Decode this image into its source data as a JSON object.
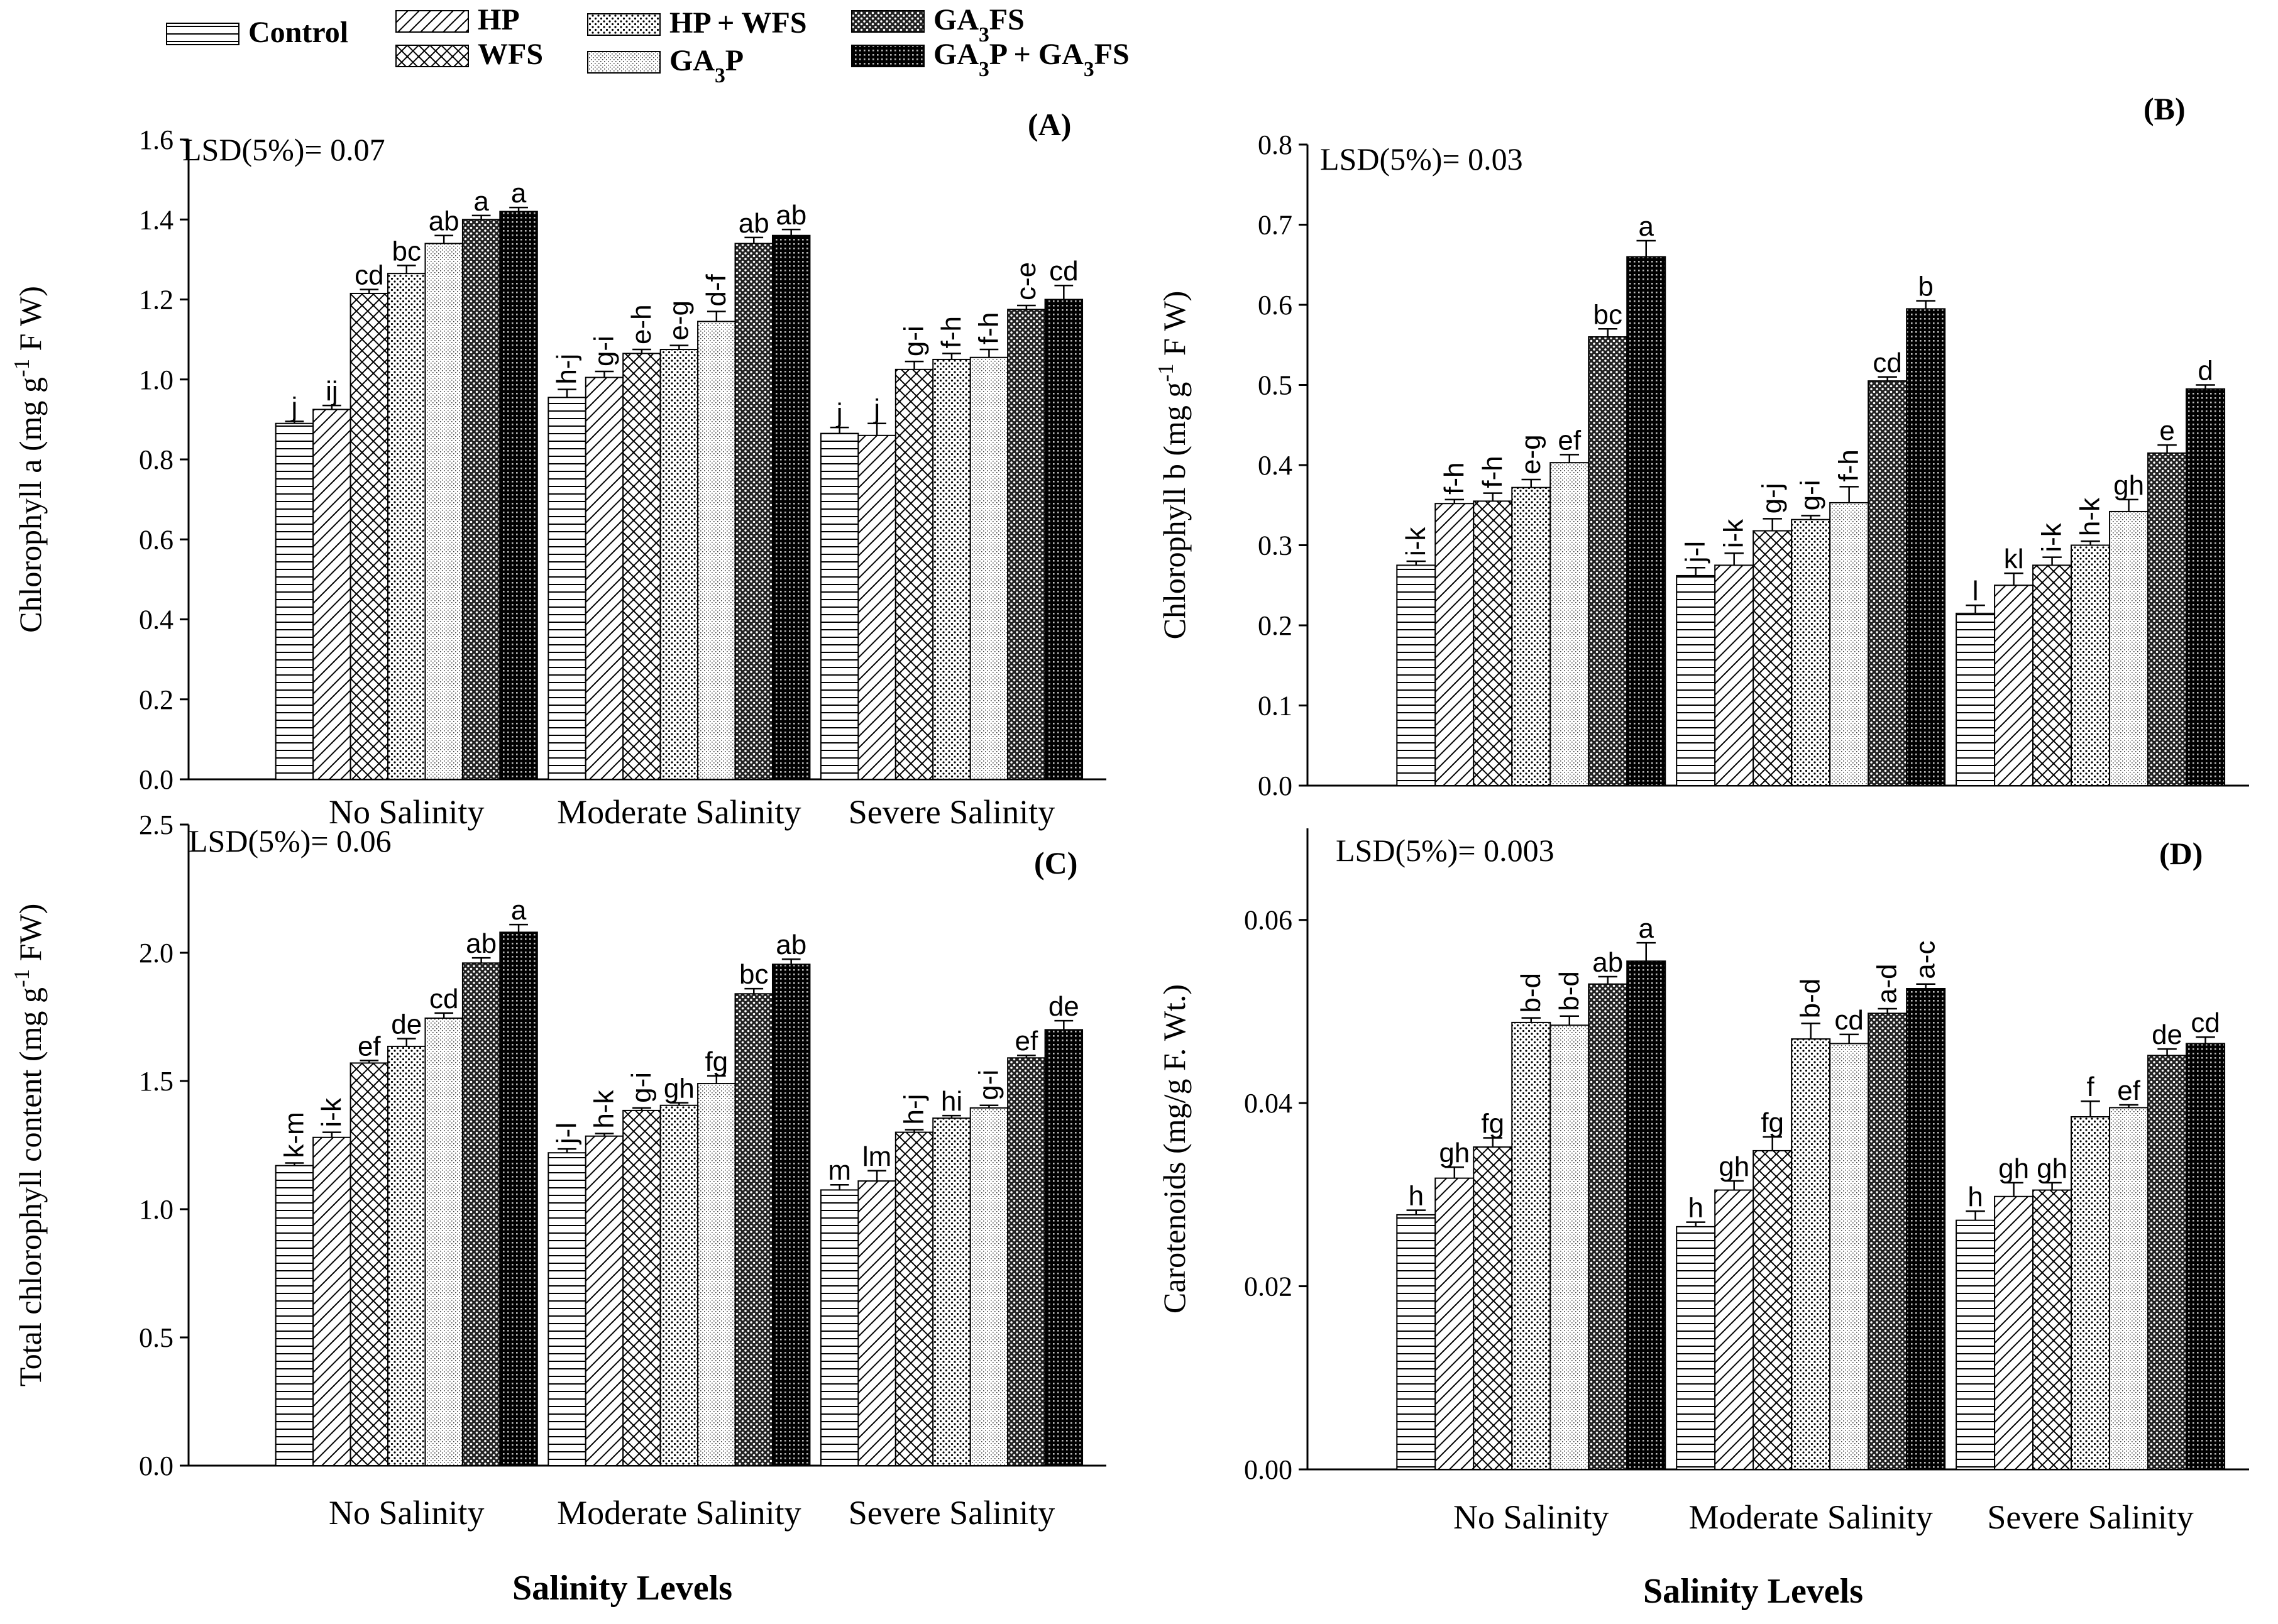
{
  "legend": {
    "items": [
      {
        "label": "Control",
        "pattern": "p0"
      },
      {
        "label": "HP",
        "pattern": "p1"
      },
      {
        "label": "WFS",
        "pattern": "p2"
      },
      {
        "label": "HP + WFS",
        "pattern": "p3"
      },
      {
        "label": "GA3P",
        "pattern": "p4"
      },
      {
        "label": "GA3FS",
        "pattern": "p5"
      },
      {
        "label": "GA3P + GA3FS",
        "pattern": "p6"
      }
    ]
  },
  "chart_data": [
    {
      "type": "bar",
      "panel": "(A)",
      "lsd": "LSD(5%)= 0.07",
      "ylabel": "Chlorophyll a (mg g-1 F W)",
      "xlabel": "",
      "ylim": [
        0,
        1.6
      ],
      "yticks": [
        0,
        0.2,
        0.4,
        0.6,
        0.8,
        1.0,
        1.2,
        1.4,
        1.6
      ],
      "ytick_labels": [
        "0.0",
        "0.2",
        "0.4",
        "0.6",
        "0.8",
        "1.0",
        "1.2",
        "1.4",
        "1.6"
      ],
      "categories": [
        "No Salinity",
        "Moderate Salinity",
        "Severe Salinity"
      ],
      "series": [
        {
          "name": "Control",
          "values": [
            0.89,
            0.955,
            0.865
          ],
          "errors": [
            0.005,
            0.02,
            0.015
          ],
          "letters": [
            "j",
            "h-j",
            "j"
          ]
        },
        {
          "name": "HP",
          "values": [
            0.925,
            1.005,
            0.86
          ],
          "errors": [
            0.01,
            0.015,
            0.03
          ],
          "letters": [
            "ij",
            "g-i",
            "j"
          ]
        },
        {
          "name": "WFS",
          "values": [
            1.215,
            1.065,
            1.025
          ],
          "errors": [
            0.01,
            0.01,
            0.02
          ],
          "letters": [
            "cd",
            "e-h",
            "g-i"
          ]
        },
        {
          "name": "HP + WFS",
          "values": [
            1.265,
            1.075,
            1.05
          ],
          "errors": [
            0.02,
            0.01,
            0.015
          ],
          "letters": [
            "bc",
            "e-g",
            "f-h"
          ]
        },
        {
          "name": "GA3P",
          "values": [
            1.34,
            1.145,
            1.055
          ],
          "errors": [
            0.02,
            0.025,
            0.02
          ],
          "letters": [
            "ab",
            "d-f",
            "f-h"
          ]
        },
        {
          "name": "GA3FS",
          "values": [
            1.4,
            1.34,
            1.175
          ],
          "errors": [
            0.01,
            0.015,
            0.01
          ],
          "letters": [
            "a",
            "ab",
            "c-e"
          ]
        },
        {
          "name": "GA3P + GA3FS",
          "values": [
            1.42,
            1.36,
            1.2
          ],
          "errors": [
            0.01,
            0.015,
            0.035
          ],
          "letters": [
            "a",
            "ab",
            "cd"
          ]
        }
      ]
    },
    {
      "type": "bar",
      "panel": "(B)",
      "lsd": "LSD(5%)= 0.03",
      "ylabel": "Chlorophyll b (mg g-1 F W)",
      "xlabel": "",
      "ylim": [
        0,
        0.8
      ],
      "yticks": [
        0,
        0.1,
        0.2,
        0.3,
        0.4,
        0.5,
        0.6,
        0.7,
        0.8
      ],
      "ytick_labels": [
        "0.0",
        "0.1",
        "0.2",
        "0.3",
        "0.4",
        "0.5",
        "0.6",
        "0.7",
        "0.8"
      ],
      "categories": [
        "No Salinity",
        "Moderate Salinity",
        "Severe Salinity"
      ],
      "series": [
        {
          "name": "Control",
          "values": [
            0.275,
            0.262,
            0.215
          ],
          "errors": [
            0.005,
            0.01,
            0.01
          ],
          "letters": [
            "i-k",
            "j-l",
            "l"
          ]
        },
        {
          "name": "HP",
          "values": [
            0.352,
            0.275,
            0.25
          ],
          "errors": [
            0.005,
            0.015,
            0.015
          ],
          "letters": [
            "f-h",
            "i-k",
            "kl"
          ]
        },
        {
          "name": "WFS",
          "values": [
            0.355,
            0.318,
            0.275
          ],
          "errors": [
            0.01,
            0.015,
            0.01
          ],
          "letters": [
            "f-h",
            "g-j",
            "i-k"
          ]
        },
        {
          "name": "HP + WFS",
          "values": [
            0.372,
            0.332,
            0.3
          ],
          "errors": [
            0.01,
            0.005,
            0.005
          ],
          "letters": [
            "e-g",
            "g-i",
            "h-k"
          ]
        },
        {
          "name": "GA3P",
          "values": [
            0.403,
            0.353,
            0.342
          ],
          "errors": [
            0.01,
            0.02,
            0.015
          ],
          "letters": [
            "ef",
            "f-h",
            "gh"
          ]
        },
        {
          "name": "GA3FS",
          "values": [
            0.56,
            0.505,
            0.415
          ],
          "errors": [
            0.01,
            0.005,
            0.01
          ],
          "letters": [
            "bc",
            "cd",
            "e"
          ]
        },
        {
          "name": "GA3P + GA3FS",
          "values": [
            0.66,
            0.595,
            0.495
          ],
          "errors": [
            0.02,
            0.01,
            0.005
          ],
          "letters": [
            "a",
            "b",
            "d"
          ]
        }
      ]
    },
    {
      "type": "bar",
      "panel": "(C)",
      "lsd": "LSD(5%)= 0.06",
      "ylabel": "Total chlorophyll content (mg g-1 FW)",
      "xlabel": "Salinity Levels",
      "ylim": [
        0,
        2.5
      ],
      "yticks": [
        0,
        0.5,
        1.0,
        1.5,
        2.0,
        2.5
      ],
      "ytick_labels": [
        "0.0",
        "0.5",
        "1.0",
        "1.5",
        "2.0",
        "2.5"
      ],
      "categories": [
        "No Salinity",
        "Moderate Salinity",
        "Severe Salinity"
      ],
      "series": [
        {
          "name": "Control",
          "values": [
            1.17,
            1.22,
            1.075
          ],
          "errors": [
            0.01,
            0.015,
            0.02
          ],
          "letters": [
            "k-m",
            "j-l",
            "m"
          ]
        },
        {
          "name": "HP",
          "values": [
            1.28,
            1.285,
            1.11
          ],
          "errors": [
            0.02,
            0.01,
            0.04
          ],
          "letters": [
            "i-k",
            "h-k",
            "lm"
          ]
        },
        {
          "name": "WFS",
          "values": [
            1.57,
            1.385,
            1.3
          ],
          "errors": [
            0.01,
            0.01,
            0.01
          ],
          "letters": [
            "ef",
            "g-i",
            "h-j"
          ]
        },
        {
          "name": "HP + WFS",
          "values": [
            1.635,
            1.405,
            1.355
          ],
          "errors": [
            0.03,
            0.01,
            0.01
          ],
          "letters": [
            "de",
            "gh",
            "hi"
          ]
        },
        {
          "name": "GA3P",
          "values": [
            1.745,
            1.49,
            1.395
          ],
          "errors": [
            0.02,
            0.03,
            0.01
          ],
          "letters": [
            "cd",
            "fg",
            "g-i"
          ]
        },
        {
          "name": "GA3FS",
          "values": [
            1.96,
            1.84,
            1.59
          ],
          "errors": [
            0.02,
            0.02,
            0.01
          ],
          "letters": [
            "ab",
            "bc",
            "ef"
          ]
        },
        {
          "name": "GA3P + GA3FS",
          "values": [
            2.08,
            1.955,
            1.7
          ],
          "errors": [
            0.03,
            0.02,
            0.035
          ],
          "letters": [
            "a",
            "ab",
            "de"
          ]
        }
      ]
    },
    {
      "type": "bar",
      "panel": "(D)",
      "lsd": "LSD(5%)= 0.003",
      "ylabel": "Carotenoids (mg/g F. Wt.)",
      "xlabel": "Salinity Levels",
      "ylim": [
        0,
        0.07
      ],
      "yticks": [
        0,
        0.02,
        0.04,
        0.06
      ],
      "ytick_labels": [
        "0.00",
        "0.02",
        "0.04",
        "0.06"
      ],
      "categories": [
        "No Salinity",
        "Moderate Salinity",
        "Severe Salinity"
      ],
      "series": [
        {
          "name": "Control",
          "values": [
            0.0278,
            0.0265,
            0.0272
          ],
          "errors": [
            0.0005,
            0.0005,
            0.001
          ],
          "letters": [
            "h",
            "h",
            "h"
          ]
        },
        {
          "name": "HP",
          "values": [
            0.0318,
            0.0305,
            0.0298
          ],
          "errors": [
            0.0012,
            0.001,
            0.0015
          ],
          "letters": [
            "gh",
            "gh",
            "gh"
          ]
        },
        {
          "name": "WFS",
          "values": [
            0.0352,
            0.0348,
            0.0305
          ],
          "errors": [
            0.001,
            0.0015,
            0.0008
          ],
          "letters": [
            "fg",
            "fg",
            "gh"
          ]
        },
        {
          "name": "HP + WFS",
          "values": [
            0.0488,
            0.047,
            0.0385
          ],
          "errors": [
            0.0005,
            0.0017,
            0.0017
          ],
          "letters": [
            "b-d",
            "b-d",
            "f"
          ]
        },
        {
          "name": "GA3P",
          "values": [
            0.0485,
            0.0465,
            0.0395
          ],
          "errors": [
            0.001,
            0.001,
            0.0003
          ],
          "letters": [
            "b-d",
            "cd",
            "ef"
          ]
        },
        {
          "name": "GA3FS",
          "values": [
            0.053,
            0.0498,
            0.0452
          ],
          "errors": [
            0.0008,
            0.0005,
            0.0007
          ],
          "letters": [
            "ab",
            "a-d",
            "de"
          ]
        },
        {
          "name": "GA3P + GA3FS",
          "values": [
            0.0555,
            0.0525,
            0.0465
          ],
          "errors": [
            0.002,
            0.0005,
            0.0007
          ],
          "letters": [
            "a",
            "a-c",
            "cd"
          ]
        }
      ]
    }
  ]
}
